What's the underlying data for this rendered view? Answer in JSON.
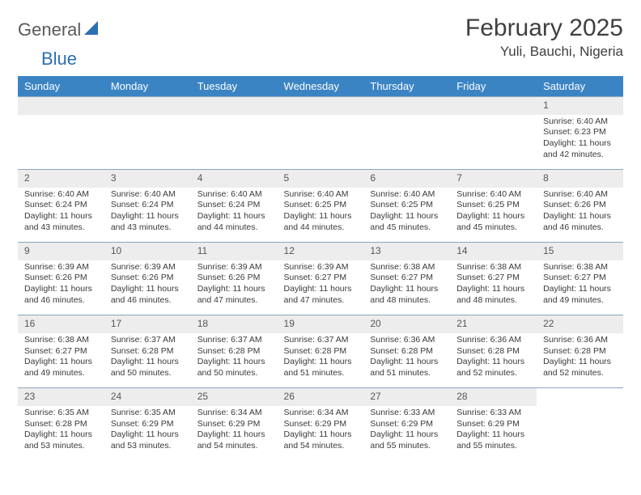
{
  "logo": {
    "word1": "General",
    "word2": "Blue"
  },
  "title": "February 2025",
  "location": "Yuli, Bauchi, Nigeria",
  "colors": {
    "header_bg": "#3b84c4",
    "header_text": "#ffffff",
    "daynum_bg": "#ededed",
    "row_border": "#8aa6bf",
    "logo_gray": "#5a5a5a",
    "logo_blue": "#2b6fb3",
    "body_text": "#3a3a3a"
  },
  "weekdays": [
    "Sunday",
    "Monday",
    "Tuesday",
    "Wednesday",
    "Thursday",
    "Friday",
    "Saturday"
  ],
  "weeks": [
    [
      null,
      null,
      null,
      null,
      null,
      null,
      {
        "n": "1",
        "sunrise": "Sunrise: 6:40 AM",
        "sunset": "Sunset: 6:23 PM",
        "daylight": "Daylight: 11 hours and 42 minutes."
      }
    ],
    [
      {
        "n": "2",
        "sunrise": "Sunrise: 6:40 AM",
        "sunset": "Sunset: 6:24 PM",
        "daylight": "Daylight: 11 hours and 43 minutes."
      },
      {
        "n": "3",
        "sunrise": "Sunrise: 6:40 AM",
        "sunset": "Sunset: 6:24 PM",
        "daylight": "Daylight: 11 hours and 43 minutes."
      },
      {
        "n": "4",
        "sunrise": "Sunrise: 6:40 AM",
        "sunset": "Sunset: 6:24 PM",
        "daylight": "Daylight: 11 hours and 44 minutes."
      },
      {
        "n": "5",
        "sunrise": "Sunrise: 6:40 AM",
        "sunset": "Sunset: 6:25 PM",
        "daylight": "Daylight: 11 hours and 44 minutes."
      },
      {
        "n": "6",
        "sunrise": "Sunrise: 6:40 AM",
        "sunset": "Sunset: 6:25 PM",
        "daylight": "Daylight: 11 hours and 45 minutes."
      },
      {
        "n": "7",
        "sunrise": "Sunrise: 6:40 AM",
        "sunset": "Sunset: 6:25 PM",
        "daylight": "Daylight: 11 hours and 45 minutes."
      },
      {
        "n": "8",
        "sunrise": "Sunrise: 6:40 AM",
        "sunset": "Sunset: 6:26 PM",
        "daylight": "Daylight: 11 hours and 46 minutes."
      }
    ],
    [
      {
        "n": "9",
        "sunrise": "Sunrise: 6:39 AM",
        "sunset": "Sunset: 6:26 PM",
        "daylight": "Daylight: 11 hours and 46 minutes."
      },
      {
        "n": "10",
        "sunrise": "Sunrise: 6:39 AM",
        "sunset": "Sunset: 6:26 PM",
        "daylight": "Daylight: 11 hours and 46 minutes."
      },
      {
        "n": "11",
        "sunrise": "Sunrise: 6:39 AM",
        "sunset": "Sunset: 6:26 PM",
        "daylight": "Daylight: 11 hours and 47 minutes."
      },
      {
        "n": "12",
        "sunrise": "Sunrise: 6:39 AM",
        "sunset": "Sunset: 6:27 PM",
        "daylight": "Daylight: 11 hours and 47 minutes."
      },
      {
        "n": "13",
        "sunrise": "Sunrise: 6:38 AM",
        "sunset": "Sunset: 6:27 PM",
        "daylight": "Daylight: 11 hours and 48 minutes."
      },
      {
        "n": "14",
        "sunrise": "Sunrise: 6:38 AM",
        "sunset": "Sunset: 6:27 PM",
        "daylight": "Daylight: 11 hours and 48 minutes."
      },
      {
        "n": "15",
        "sunrise": "Sunrise: 6:38 AM",
        "sunset": "Sunset: 6:27 PM",
        "daylight": "Daylight: 11 hours and 49 minutes."
      }
    ],
    [
      {
        "n": "16",
        "sunrise": "Sunrise: 6:38 AM",
        "sunset": "Sunset: 6:27 PM",
        "daylight": "Daylight: 11 hours and 49 minutes."
      },
      {
        "n": "17",
        "sunrise": "Sunrise: 6:37 AM",
        "sunset": "Sunset: 6:28 PM",
        "daylight": "Daylight: 11 hours and 50 minutes."
      },
      {
        "n": "18",
        "sunrise": "Sunrise: 6:37 AM",
        "sunset": "Sunset: 6:28 PM",
        "daylight": "Daylight: 11 hours and 50 minutes."
      },
      {
        "n": "19",
        "sunrise": "Sunrise: 6:37 AM",
        "sunset": "Sunset: 6:28 PM",
        "daylight": "Daylight: 11 hours and 51 minutes."
      },
      {
        "n": "20",
        "sunrise": "Sunrise: 6:36 AM",
        "sunset": "Sunset: 6:28 PM",
        "daylight": "Daylight: 11 hours and 51 minutes."
      },
      {
        "n": "21",
        "sunrise": "Sunrise: 6:36 AM",
        "sunset": "Sunset: 6:28 PM",
        "daylight": "Daylight: 11 hours and 52 minutes."
      },
      {
        "n": "22",
        "sunrise": "Sunrise: 6:36 AM",
        "sunset": "Sunset: 6:28 PM",
        "daylight": "Daylight: 11 hours and 52 minutes."
      }
    ],
    [
      {
        "n": "23",
        "sunrise": "Sunrise: 6:35 AM",
        "sunset": "Sunset: 6:28 PM",
        "daylight": "Daylight: 11 hours and 53 minutes."
      },
      {
        "n": "24",
        "sunrise": "Sunrise: 6:35 AM",
        "sunset": "Sunset: 6:29 PM",
        "daylight": "Daylight: 11 hours and 53 minutes."
      },
      {
        "n": "25",
        "sunrise": "Sunrise: 6:34 AM",
        "sunset": "Sunset: 6:29 PM",
        "daylight": "Daylight: 11 hours and 54 minutes."
      },
      {
        "n": "26",
        "sunrise": "Sunrise: 6:34 AM",
        "sunset": "Sunset: 6:29 PM",
        "daylight": "Daylight: 11 hours and 54 minutes."
      },
      {
        "n": "27",
        "sunrise": "Sunrise: 6:33 AM",
        "sunset": "Sunset: 6:29 PM",
        "daylight": "Daylight: 11 hours and 55 minutes."
      },
      {
        "n": "28",
        "sunrise": "Sunrise: 6:33 AM",
        "sunset": "Sunset: 6:29 PM",
        "daylight": "Daylight: 11 hours and 55 minutes."
      },
      null
    ]
  ]
}
